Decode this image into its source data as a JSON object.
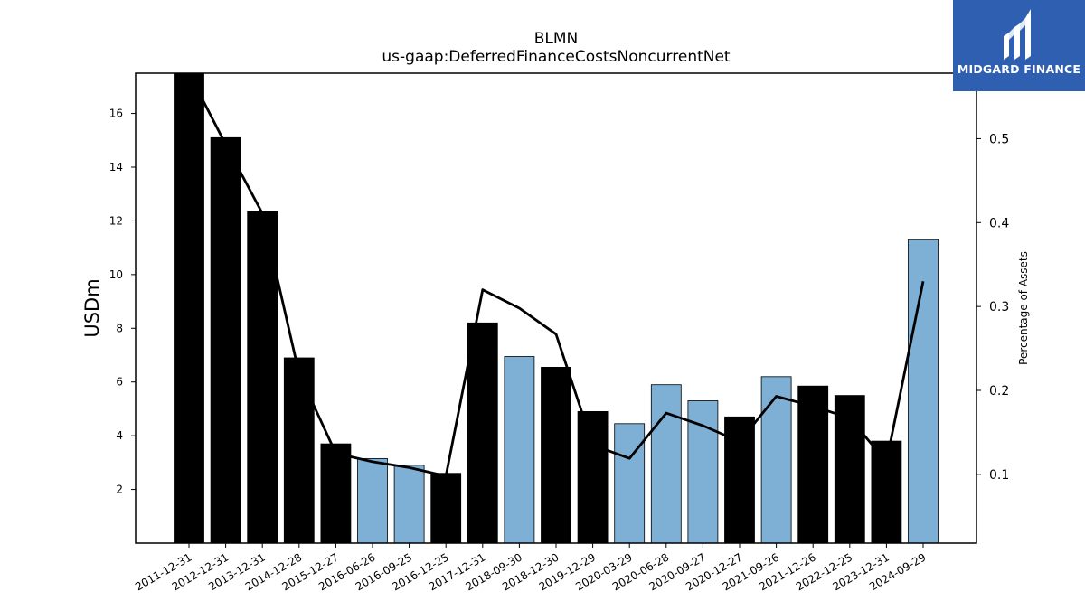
{
  "brand": {
    "name": "MIDGARD FINANCE",
    "logo_icon": "midgard-finance-logo-icon",
    "background_color": "#2f5fb0"
  },
  "chart_data": {
    "type": "bar",
    "title": "BLMN",
    "subtitle": "us-gaap:DeferredFinanceCostsNoncurrentNet",
    "ylabel": "USDm",
    "ylabel_right": "Percentage of Assets",
    "ylim": [
      0,
      17.5
    ],
    "ylim_right": [
      0.018,
      0.578
    ],
    "yticks": [
      2,
      4,
      6,
      8,
      10,
      12,
      14,
      16
    ],
    "yticks_right": [
      0.1,
      0.2,
      0.3,
      0.4,
      0.5
    ],
    "grid": false,
    "categories": [
      "2011-12-31",
      "2012-12-31",
      "2013-12-31",
      "2014-12-28",
      "2015-12-27",
      "2016-06-26",
      "2016-09-25",
      "2016-12-25",
      "2017-12-31",
      "2018-09-30",
      "2018-12-30",
      "2019-12-29",
      "2020-03-29",
      "2020-06-28",
      "2020-09-27",
      "2020-12-27",
      "2021-09-26",
      "2021-12-26",
      "2022-12-25",
      "2023-12-31",
      "2024-09-29"
    ],
    "values": [
      17.6,
      15.1,
      12.35,
      6.9,
      3.7,
      3.15,
      2.9,
      2.6,
      8.2,
      6.95,
      6.55,
      4.9,
      4.45,
      5.9,
      5.3,
      4.7,
      6.2,
      5.85,
      5.5,
      3.8,
      11.3
    ],
    "bar_colors": [
      "#000000",
      "#000000",
      "#000000",
      "#000000",
      "#000000",
      "#7eb0d5",
      "#7eb0d5",
      "#000000",
      "#000000",
      "#7eb0d5",
      "#000000",
      "#000000",
      "#7eb0d5",
      "#7eb0d5",
      "#7eb0d5",
      "#000000",
      "#7eb0d5",
      "#000000",
      "#000000",
      "#000000",
      "#7eb0d5"
    ],
    "line_series": {
      "axis": "right",
      "color": "#000000",
      "values": [
        0.578,
        0.493,
        0.411,
        0.22,
        0.125,
        0.115,
        0.108,
        0.098,
        0.32,
        0.298,
        0.267,
        0.135,
        0.119,
        0.173,
        0.158,
        0.139,
        0.193,
        0.181,
        0.167,
        0.115,
        0.33
      ]
    }
  }
}
